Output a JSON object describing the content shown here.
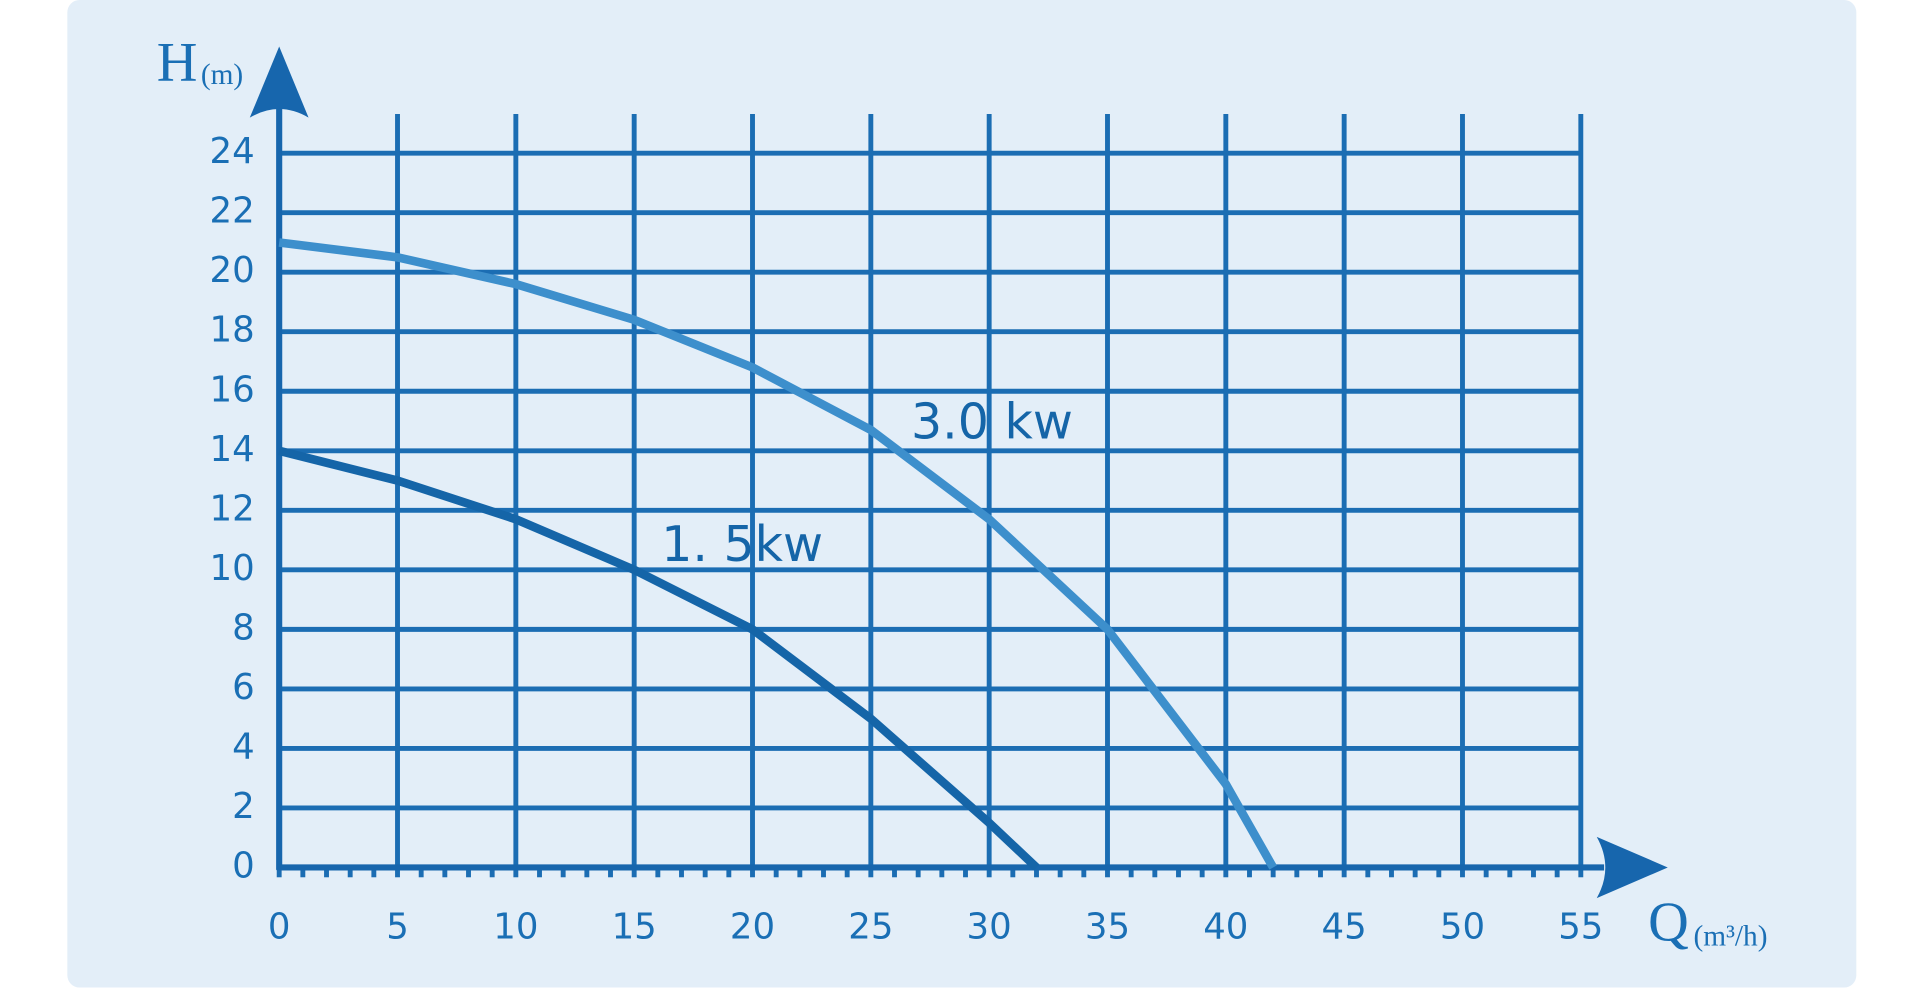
{
  "chart_data": {
    "type": "line",
    "y_label": "H",
    "y_unit": "(m)",
    "x_label": "Q",
    "x_unit": "(m³/h)",
    "xlim": [
      0,
      55
    ],
    "ylim": [
      0,
      24
    ],
    "xticks": [
      0,
      5,
      10,
      15,
      20,
      25,
      30,
      35,
      40,
      45,
      50,
      55
    ],
    "yticks": [
      0,
      2,
      4,
      6,
      8,
      10,
      12,
      14,
      16,
      18,
      20,
      22,
      24
    ],
    "grid": true,
    "series": [
      {
        "name": "1. 5kw",
        "color": "#1565a8",
        "x": [
          0,
          5,
          10,
          15,
          20,
          25,
          30,
          32
        ],
        "values": [
          14,
          13,
          11.7,
          10,
          8,
          5,
          1.5,
          0
        ]
      },
      {
        "name": "3.0 kw",
        "color": "#3d8fcc",
        "x": [
          0,
          5,
          10,
          15,
          20,
          25,
          30,
          35,
          40,
          42
        ],
        "values": [
          21,
          20.5,
          19.6,
          18.4,
          16.8,
          14.7,
          11.7,
          8,
          2.8,
          0
        ]
      }
    ]
  }
}
